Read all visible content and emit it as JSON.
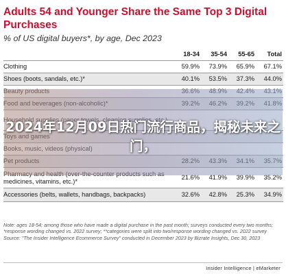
{
  "chart_data": {
    "type": "table",
    "title": "Adults 54 and Younger Share the Same Top 3 Digital Purchases",
    "subtitle": "% of US digital buyers*, by age, Dec 2023",
    "columns": [
      "18-34",
      "35-54",
      "55-65",
      "Total"
    ],
    "rows": [
      {
        "label": "Clothing",
        "values": [
          "59.9%",
          "73.9%",
          "65.9%",
          "67.1%"
        ]
      },
      {
        "label": "Shoes (boots, sandals, etc.)*",
        "values": [
          "40.1%",
          "53.5%",
          "37.3%",
          "44.0%"
        ]
      },
      {
        "label": "Beauty products",
        "values": [
          "36.6%",
          "48.9%",
          "42.4%",
          "43.1%"
        ]
      },
      {
        "label": "Food and beverages (non-alcoholic)*",
        "values": [
          "39.2%",
          "46.2%",
          "39.2%",
          "41.8%"
        ]
      },
      {
        "label": "Household supplies (paper towels, cleaning supplies, etc.)",
        "values": [
          "",
          "",
          "",
          ""
        ]
      },
      {
        "label": "Toys and games",
        "values": [
          "",
          "",
          "",
          ""
        ]
      },
      {
        "label": "Books, music, videos (physical)",
        "values": [
          "",
          "",
          "",
          ""
        ]
      },
      {
        "label": "Pet products",
        "values": [
          "28.2%",
          "43.3%",
          "34.1%",
          "35.7%"
        ]
      },
      {
        "label": "Pharmacy and health (over-the-counter products such as medicines, vitamins, etc.)*",
        "values": [
          "21.6%",
          "41.9%",
          "39.9%",
          "35.2%"
        ]
      },
      {
        "label": "Accessories (belts, wallets, handbags, backpacks)",
        "values": [
          "32.6%",
          "42.8%",
          "25.3%",
          "34.9%"
        ]
      }
    ],
    "notes": "Note: ages 18-54; among those who have made a digital purchase in the past month; surveys conducted every two months; *response wording changed vs. 2022 survey; **categories were split into two/response wording changed vs. 2022 survey",
    "source": "Source: \"The Insider Intelligence Ecommerce Survey\" conducted in December 2023 by Bizrate Insights, Dec 30, 2023",
    "brand": "Insider Intelligence | eMarketer",
    "overlay_text": "2024年12月09日热门流行商品，揭秘未来之门，"
  }
}
